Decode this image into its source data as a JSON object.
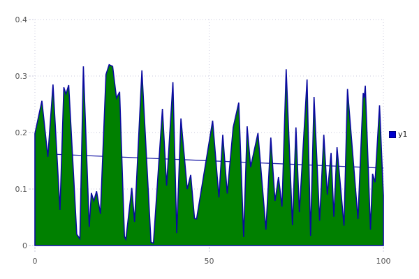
{
  "chart_data": {
    "type": "area",
    "title": "",
    "xlabel": "",
    "ylabel": "",
    "xlim": [
      0,
      100
    ],
    "ylim": [
      0,
      0.4
    ],
    "xticks": {
      "values": [
        0,
        50,
        100
      ],
      "labels": [
        "0",
        "50",
        "100"
      ]
    },
    "yticks": {
      "values": [
        0,
        0.1,
        0.2,
        0.3,
        0.4
      ],
      "labels": [
        "0",
        "0.1",
        "0.2",
        "0.3",
        "0.4"
      ]
    },
    "grid": "dashed",
    "grid_color": "#c9c9de",
    "label_color": "#555555",
    "legend": {
      "position": "right-middle",
      "entries": [
        {
          "label": "y1",
          "swatch_color": "#0000cc"
        }
      ]
    },
    "series": [
      {
        "name": "y1",
        "type": "area",
        "fill_color": "#008000",
        "line_color": "#0a0aa0",
        "x": [
          0,
          2,
          3.7,
          5.2,
          7.2,
          8.3,
          8.9,
          9.7,
          12,
          12.9,
          13.9,
          15.6,
          16.2,
          16.9,
          17.7,
          18.8,
          20.4,
          21.3,
          22.3,
          23.4,
          24.3,
          25.7,
          26.1,
          27.8,
          28.6,
          30.7,
          33.3,
          34,
          36.6,
          37.8,
          39.6,
          40.7,
          41.9,
          43.7,
          44.7,
          45.8,
          46.4,
          51,
          52.8,
          53.9,
          55.2,
          56.9,
          58.5,
          59.9,
          60.9,
          61.9,
          64,
          66.3,
          67.7,
          68.9,
          69.9,
          70.9,
          72.1,
          73.9,
          74.9,
          75.9,
          78.1,
          79.1,
          80.1,
          81.7,
          82.9,
          83.9,
          85,
          85.8,
          86.7,
          88.7,
          89.7,
          92.7,
          94.2,
          94.5,
          94.8,
          96.3,
          96.9,
          97.6,
          98.9,
          100
        ],
        "y": [
          0.198,
          0.256,
          0.157,
          0.285,
          0.063,
          0.28,
          0.268,
          0.284,
          0.02,
          0.012,
          0.317,
          0.033,
          0.093,
          0.079,
          0.096,
          0.056,
          0.303,
          0.32,
          0.317,
          0.261,
          0.272,
          0.016,
          0.011,
          0.102,
          0.042,
          0.31,
          0.006,
          0.004,
          0.242,
          0.106,
          0.289,
          0.022,
          0.225,
          0.1,
          0.125,
          0.048,
          0.047,
          0.221,
          0.085,
          0.196,
          0.092,
          0.209,
          0.253,
          0.015,
          0.211,
          0.139,
          0.199,
          0.028,
          0.191,
          0.079,
          0.121,
          0.069,
          0.312,
          0.036,
          0.209,
          0.059,
          0.294,
          0.017,
          0.263,
          0.044,
          0.196,
          0.09,
          0.164,
          0.051,
          0.174,
          0.035,
          0.277,
          0.047,
          0.27,
          0.262,
          0.283,
          0.028,
          0.127,
          0.112,
          0.248,
          0.088
        ]
      }
    ],
    "trendline": {
      "for_series": "y1",
      "color": "#2323aa",
      "x": [
        0,
        100
      ],
      "y": [
        0.163,
        0.137
      ]
    }
  }
}
